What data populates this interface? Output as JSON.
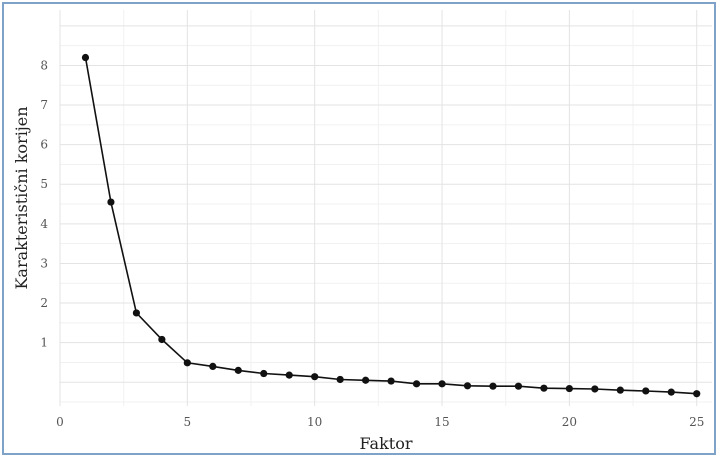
{
  "chart_data": {
    "type": "line",
    "title": "",
    "xlabel": "Faktor",
    "ylabel": "Karakteristični korijen",
    "xlim": [
      0,
      25.6
    ],
    "ylim": [
      -0.6,
      9.4
    ],
    "x_ticks": [
      0,
      5,
      10,
      15,
      20,
      25
    ],
    "y_ticks": [
      1,
      2,
      3,
      4,
      5,
      6,
      7,
      8
    ],
    "grid": true,
    "legend": "none",
    "series": [
      {
        "x": [
          1,
          2,
          3,
          4,
          5,
          6,
          7,
          8,
          9,
          10,
          11,
          12,
          13,
          14,
          15,
          16,
          17,
          18,
          19,
          20,
          21,
          22,
          23,
          24,
          25
        ],
        "values": [
          8.2,
          4.55,
          1.75,
          1.08,
          0.49,
          0.4,
          0.3,
          0.22,
          0.18,
          0.14,
          0.07,
          0.05,
          0.03,
          -0.04,
          -0.04,
          -0.09,
          -0.1,
          -0.1,
          -0.15,
          -0.16,
          -0.17,
          -0.2,
          -0.22,
          -0.25,
          -0.29
        ],
        "color": "#111111"
      }
    ]
  }
}
